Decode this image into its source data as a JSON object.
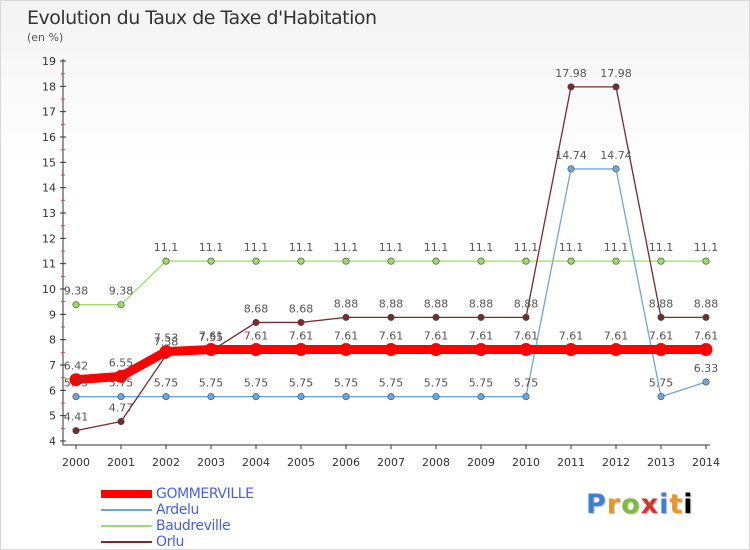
{
  "header": {
    "title": "Evolution du Taux de Taxe d'Habitation",
    "unit": "(en %)"
  },
  "logo_text": "Proxiti",
  "chart_data": {
    "type": "line",
    "x": [
      "2000",
      "2001",
      "2002",
      "2003",
      "2004",
      "2005",
      "2006",
      "2007",
      "2008",
      "2009",
      "2010",
      "2011",
      "2012",
      "2013",
      "2014"
    ],
    "ylim": [
      4,
      19
    ],
    "yticks": [
      4,
      5,
      6,
      7,
      8,
      9,
      10,
      11,
      12,
      13,
      14,
      15,
      16,
      17,
      18,
      19
    ],
    "grid": false,
    "legend_position": "bottom-left",
    "series": [
      {
        "name": "GOMMERVILLE",
        "color": "#ff0000",
        "values": [
          6.42,
          6.55,
          7.53,
          7.61,
          7.61,
          7.61,
          7.61,
          7.61,
          7.61,
          7.61,
          7.61,
          7.61,
          7.61,
          7.61,
          7.61
        ],
        "labels": [
          "6.42",
          "6.55",
          "7.53",
          "7.61",
          "7.61",
          "7.61",
          "7.61",
          "7.61",
          "7.61",
          "7.61",
          "7.61",
          "7.61",
          "7.61",
          "7.61",
          "7.61"
        ]
      },
      {
        "name": "Ardelu",
        "color": "#6ea6dc",
        "values": [
          5.75,
          5.75,
          5.75,
          5.75,
          5.75,
          5.75,
          5.75,
          5.75,
          5.75,
          5.75,
          5.75,
          14.74,
          14.74,
          5.75,
          6.33
        ],
        "labels": [
          "5.75",
          "5.75",
          "5.75",
          "5.75",
          "5.75",
          "5.75",
          "5.75",
          "5.75",
          "5.75",
          "5.75",
          "5.75",
          "14.74",
          "14.74",
          "5.75",
          "6.33"
        ]
      },
      {
        "name": "Baudreville",
        "color": "#99dd66",
        "values": [
          9.38,
          9.38,
          11.1,
          11.1,
          11.1,
          11.1,
          11.1,
          11.1,
          11.1,
          11.1,
          11.1,
          11.1,
          11.1,
          11.1,
          11.1
        ],
        "labels": [
          "9.38",
          "9.38",
          "11.1",
          "11.1",
          "11.1",
          "11.1",
          "11.1",
          "11.1",
          "11.1",
          "11.1",
          "11.1",
          "11.1",
          "11.1",
          "11.1",
          "11.1"
        ]
      },
      {
        "name": "Orlu",
        "color": "#7a2a2a",
        "values": [
          4.41,
          4.77,
          7.38,
          7.55,
          8.68,
          8.68,
          8.88,
          8.88,
          8.88,
          8.88,
          8.88,
          17.98,
          17.98,
          8.88,
          8.88
        ],
        "labels": [
          "4.41",
          "4.77",
          "7.38",
          "7.55",
          "8.68",
          "8.68",
          "8.88",
          "8.88",
          "8.88",
          "8.88",
          "8.88",
          "17.98",
          "17.98",
          "8.88",
          "8.88"
        ]
      }
    ]
  }
}
